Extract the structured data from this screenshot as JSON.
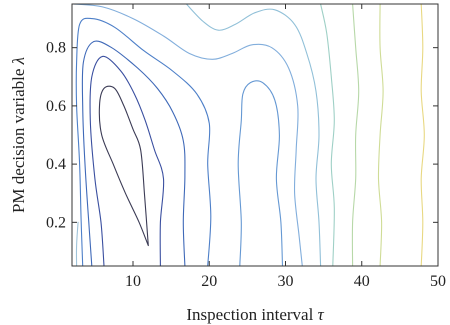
{
  "chart_data": {
    "type": "contour",
    "title": "",
    "xlabel": {
      "text": "Inspection interval ",
      "symbol": "τ"
    },
    "ylabel": {
      "text": "PM decision variable ",
      "symbol": "λ"
    },
    "xlim": [
      2,
      50
    ],
    "ylim": [
      0.05,
      0.95
    ],
    "xticks": [
      10,
      20,
      30,
      40,
      50
    ],
    "yticks": [
      0.2,
      0.4,
      0.6,
      0.8
    ],
    "xtick_labels": [
      "10",
      "20",
      "30",
      "40",
      "50"
    ],
    "ytick_labels": [
      "0.2",
      "0.4",
      "0.6",
      "0.8"
    ],
    "grid": false,
    "legend": "none",
    "colormap": "parula",
    "levels": [
      {
        "level": 1,
        "color": "#3b3b55",
        "points": [
          [
            12.0,
            0.12
          ],
          [
            11.5,
            0.3
          ],
          [
            11.0,
            0.45
          ],
          [
            10.0,
            0.52
          ],
          [
            8.8,
            0.6
          ],
          [
            7.6,
            0.66
          ],
          [
            6.2,
            0.66
          ],
          [
            5.6,
            0.6
          ],
          [
            5.9,
            0.5
          ],
          [
            7.4,
            0.4
          ],
          [
            9.0,
            0.3
          ],
          [
            10.8,
            0.2
          ],
          [
            12.0,
            0.12
          ]
        ]
      },
      {
        "level": 2,
        "color": "#3a4fa0",
        "points": [
          [
            13.6,
            0.05
          ],
          [
            13.6,
            0.2
          ],
          [
            14.0,
            0.35
          ],
          [
            12.8,
            0.45
          ],
          [
            11.6,
            0.55
          ],
          [
            10.2,
            0.64
          ],
          [
            8.4,
            0.72
          ],
          [
            6.0,
            0.77
          ],
          [
            4.6,
            0.7
          ],
          [
            4.4,
            0.55
          ],
          [
            5.0,
            0.35
          ],
          [
            5.8,
            0.2
          ],
          [
            6.2,
            0.05
          ]
        ]
      },
      {
        "level": 3,
        "color": "#3f69b8",
        "points": [
          [
            16.8,
            0.05
          ],
          [
            16.6,
            0.2
          ],
          [
            16.8,
            0.36
          ],
          [
            16.6,
            0.48
          ],
          [
            15.2,
            0.58
          ],
          [
            13.2,
            0.66
          ],
          [
            10.6,
            0.73
          ],
          [
            7.2,
            0.8
          ],
          [
            4.8,
            0.82
          ],
          [
            3.5,
            0.75
          ],
          [
            3.4,
            0.6
          ],
          [
            3.7,
            0.4
          ],
          [
            4.2,
            0.2
          ],
          [
            4.6,
            0.05
          ]
        ]
      },
      {
        "level": 4,
        "color": "#4d7fc8",
        "points": [
          [
            19.8,
            0.05
          ],
          [
            20.2,
            0.22
          ],
          [
            19.8,
            0.4
          ],
          [
            20.0,
            0.54
          ],
          [
            18.4,
            0.64
          ],
          [
            15.2,
            0.72
          ],
          [
            11.4,
            0.79
          ],
          [
            7.6,
            0.87
          ],
          [
            4.6,
            0.9
          ],
          [
            3.0,
            0.88
          ],
          [
            2.6,
            0.75
          ],
          [
            2.6,
            0.6
          ],
          [
            3.0,
            0.4
          ],
          [
            3.2,
            0.2
          ],
          [
            3.4,
            0.05
          ]
        ]
      },
      {
        "level": 5,
        "color": "#6598d3",
        "points": [
          [
            24.0,
            0.05
          ],
          [
            24.2,
            0.2
          ],
          [
            23.8,
            0.4
          ],
          [
            24.2,
            0.55
          ],
          [
            24.4,
            0.64
          ],
          [
            25.4,
            0.68
          ],
          [
            27.0,
            0.68
          ],
          [
            28.6,
            0.62
          ],
          [
            29.2,
            0.5
          ],
          [
            28.8,
            0.35
          ],
          [
            29.4,
            0.2
          ],
          [
            29.6,
            0.05
          ]
        ]
      },
      {
        "level": 6,
        "color": "#82aedc",
        "points": [
          [
            2.2,
            0.95
          ],
          [
            6.0,
            0.94
          ],
          [
            10.0,
            0.9
          ],
          [
            14.0,
            0.84
          ],
          [
            17.4,
            0.78
          ],
          [
            20.4,
            0.76
          ],
          [
            23.0,
            0.78
          ],
          [
            25.6,
            0.81
          ],
          [
            28.2,
            0.8
          ],
          [
            30.4,
            0.73
          ],
          [
            31.6,
            0.6
          ],
          [
            31.4,
            0.45
          ],
          [
            31.2,
            0.3
          ],
          [
            31.8,
            0.15
          ],
          [
            32.2,
            0.05
          ]
        ]
      },
      {
        "level": 7,
        "color": "#91c0d8",
        "points": [
          [
            17.0,
            0.95
          ],
          [
            19.2,
            0.89
          ],
          [
            21.2,
            0.86
          ],
          [
            23.4,
            0.88
          ],
          [
            26.0,
            0.92
          ],
          [
            28.6,
            0.93
          ],
          [
            31.2,
            0.88
          ],
          [
            32.8,
            0.78
          ],
          [
            34.0,
            0.65
          ],
          [
            34.4,
            0.5
          ],
          [
            34.0,
            0.35
          ],
          [
            34.4,
            0.2
          ],
          [
            34.6,
            0.05
          ]
        ]
      },
      {
        "level": 8,
        "color": "#9fd0c6",
        "points": [
          [
            34.6,
            0.95
          ],
          [
            35.4,
            0.85
          ],
          [
            36.0,
            0.7
          ],
          [
            36.4,
            0.55
          ],
          [
            36.0,
            0.4
          ],
          [
            36.4,
            0.25
          ],
          [
            36.2,
            0.05
          ]
        ]
      },
      {
        "level": 9,
        "color": "#b7d8a8",
        "points": [
          [
            38.8,
            0.95
          ],
          [
            39.2,
            0.8
          ],
          [
            39.6,
            0.65
          ],
          [
            39.2,
            0.5
          ],
          [
            39.2,
            0.35
          ],
          [
            38.8,
            0.2
          ],
          [
            38.8,
            0.05
          ]
        ]
      },
      {
        "level": 10,
        "color": "#cfdc96",
        "points": [
          [
            42.4,
            0.95
          ],
          [
            42.4,
            0.8
          ],
          [
            42.8,
            0.65
          ],
          [
            42.4,
            0.5
          ],
          [
            42.2,
            0.35
          ],
          [
            42.6,
            0.2
          ],
          [
            42.4,
            0.05
          ]
        ]
      },
      {
        "level": 11,
        "color": "#e8d882",
        "points": [
          [
            47.8,
            0.95
          ],
          [
            48.0,
            0.8
          ],
          [
            47.8,
            0.65
          ],
          [
            48.2,
            0.5
          ],
          [
            47.8,
            0.35
          ],
          [
            48.0,
            0.2
          ],
          [
            47.8,
            0.05
          ]
        ]
      },
      {
        "level": 12,
        "color": "#9fc3d9",
        "points": [
          [
            2.6,
            0.05
          ],
          [
            2.6,
            0.12
          ],
          [
            2.8,
            0.2
          ]
        ]
      }
    ]
  }
}
